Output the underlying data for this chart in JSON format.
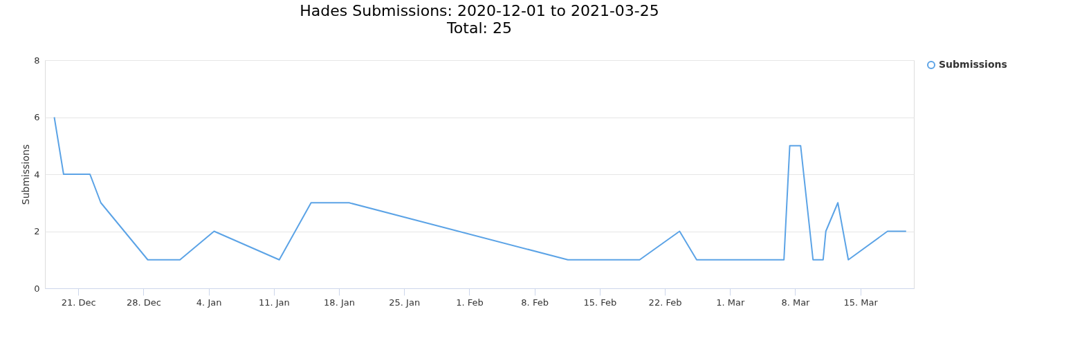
{
  "chart_data": {
    "type": "line",
    "title": "Hades Submissions: 2020-12-01 to 2021-03-25",
    "subtitle": "Total: 25",
    "ylabel": "Submissions",
    "x": [
      "2020-12-18T10:00",
      "2020-12-19T10:00",
      "2020-12-22T06:00",
      "2020-12-23T10:00",
      "2020-12-28T11:00",
      "2020-12-31T22:00",
      "2021-01-04T14:00",
      "2021-01-11T14:00",
      "2021-01-15T00:00",
      "2021-01-19T02:00",
      "2021-02-11T14:00",
      "2021-02-19T07:00",
      "2021-02-23T14:00",
      "2021-02-25T10:00",
      "2021-03-06T19:00",
      "2021-03-07T10:00",
      "2021-03-08T14:00",
      "2021-03-09T22:00",
      "2021-03-11T00:00",
      "2021-03-11T07:00",
      "2021-03-12T14:00",
      "2021-03-13T17:00",
      "2021-03-17T22:00",
      "2021-03-19T22:00"
    ],
    "series": [
      {
        "name": "Submissions",
        "color": "#5ba3e6",
        "values": [
          6,
          4,
          4,
          3,
          1,
          1,
          2,
          1,
          3,
          3,
          1,
          1,
          2,
          1,
          1,
          5,
          5,
          1,
          1,
          2,
          3,
          1,
          2,
          2
        ]
      }
    ],
    "xlim": [
      "2020-12-17T10:00",
      "2021-03-20T18:00"
    ],
    "xticks": [
      {
        "value": "2020-12-21",
        "label": "21. Dec"
      },
      {
        "value": "2020-12-28",
        "label": "28. Dec"
      },
      {
        "value": "2021-01-04",
        "label": "4. Jan"
      },
      {
        "value": "2021-01-11",
        "label": "11. Jan"
      },
      {
        "value": "2021-01-18",
        "label": "18. Jan"
      },
      {
        "value": "2021-01-25",
        "label": "25. Jan"
      },
      {
        "value": "2021-02-01",
        "label": "1. Feb"
      },
      {
        "value": "2021-02-08",
        "label": "8. Feb"
      },
      {
        "value": "2021-02-15",
        "label": "15. Feb"
      },
      {
        "value": "2021-02-22",
        "label": "22. Feb"
      },
      {
        "value": "2021-03-01",
        "label": "1. Mar"
      },
      {
        "value": "2021-03-08",
        "label": "8. Mar"
      },
      {
        "value": "2021-03-15",
        "label": "15. Mar"
      }
    ],
    "ylim": [
      0,
      8
    ],
    "yticks": [
      0,
      2,
      4,
      6,
      8
    ],
    "grid": "y",
    "legend": "right",
    "marker": "none",
    "line_style": "solid"
  }
}
